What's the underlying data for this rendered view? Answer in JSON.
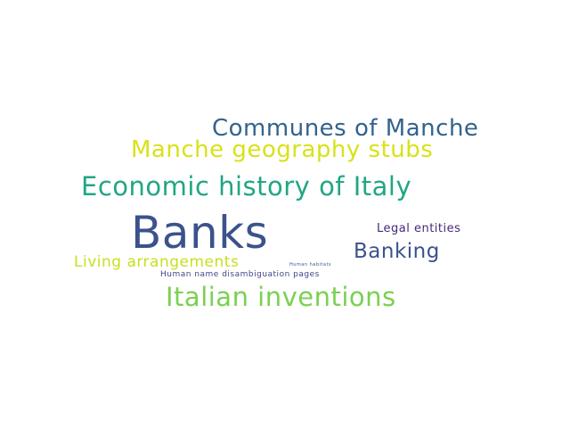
{
  "words": [
    {
      "text": "Banks",
      "color": "#3b528b"
    },
    {
      "text": "Economic history of Italy",
      "color": "#21a685"
    },
    {
      "text": "Italian inventions",
      "color": "#7ad151"
    },
    {
      "text": "Communes of Manche",
      "color": "#33638d"
    },
    {
      "text": "Manche geography stubs",
      "color": "#d8e219"
    },
    {
      "text": "Banking",
      "color": "#3b528b"
    },
    {
      "text": "Living arrangements",
      "color": "#c8e020"
    },
    {
      "text": "Legal entities",
      "color": "#482878"
    },
    {
      "text": "Human name disambiguation pages",
      "color": "#414487"
    },
    {
      "text": "Human habitats",
      "color": "#3b528b"
    }
  ]
}
